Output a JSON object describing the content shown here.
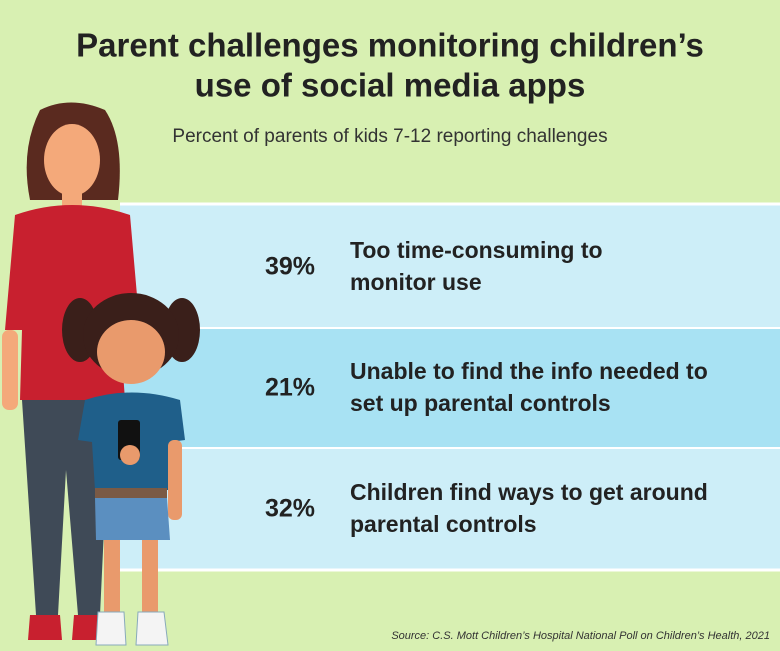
{
  "title": [
    "Parent challenges monitoring children’s",
    "use of social media apps"
  ],
  "subtitle": "Percent of parents of kids 7-12 reporting challenges",
  "rows": [
    {
      "percent": "39%",
      "label": [
        "Too time-consuming to",
        "monitor use"
      ]
    },
    {
      "percent": "21%",
      "label": [
        "Unable to find the info needed to",
        "set up parental controls"
      ]
    },
    {
      "percent": "32%",
      "label": [
        "Children find ways to get around",
        "parental controls"
      ]
    }
  ],
  "source": "Source: C.S. Mott Children’s Hospital National Poll on Children’s Health, 2021"
}
